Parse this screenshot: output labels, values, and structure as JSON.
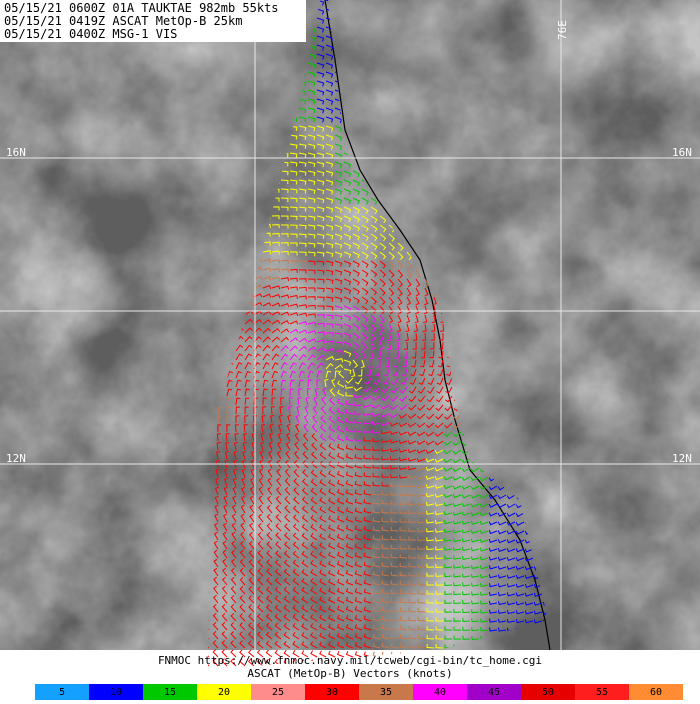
{
  "header": {
    "lines": [
      "05/15/21 0600Z  01A TAUKTAE 982mb 55kts",
      "05/15/21 0419Z  ASCAT MetOp-B 25km",
      "05/15/21 0400Z  MSG-1 VIS"
    ]
  },
  "grid_labels": {
    "lat_top": "16N",
    "lat_bottom": "12N",
    "lon": "76E"
  },
  "footer": {
    "lines": [
      "FNMOC https://www.fnmoc.navy.mil/tcweb/cgi-bin/tc_home.cgi",
      "ASCAT (MetOp-B) Vectors (knots)"
    ]
  },
  "legend": {
    "items": [
      {
        "value": 5,
        "color": "#14a0ff"
      },
      {
        "value": 10,
        "color": "#0000ff"
      },
      {
        "value": 15,
        "color": "#00c800"
      },
      {
        "value": 20,
        "color": "#ffff00"
      },
      {
        "value": 25,
        "color": "#ff8c8c"
      },
      {
        "value": 30,
        "color": "#ff0000"
      },
      {
        "value": 35,
        "color": "#c8784a"
      },
      {
        "value": 40,
        "color": "#ff00ff"
      },
      {
        "value": 45,
        "color": "#a000c8"
      },
      {
        "value": 50,
        "color": "#e60000"
      },
      {
        "value": 55,
        "color": "#ff1e1e"
      },
      {
        "value": 60,
        "color": "#ff8c32"
      }
    ]
  }
}
